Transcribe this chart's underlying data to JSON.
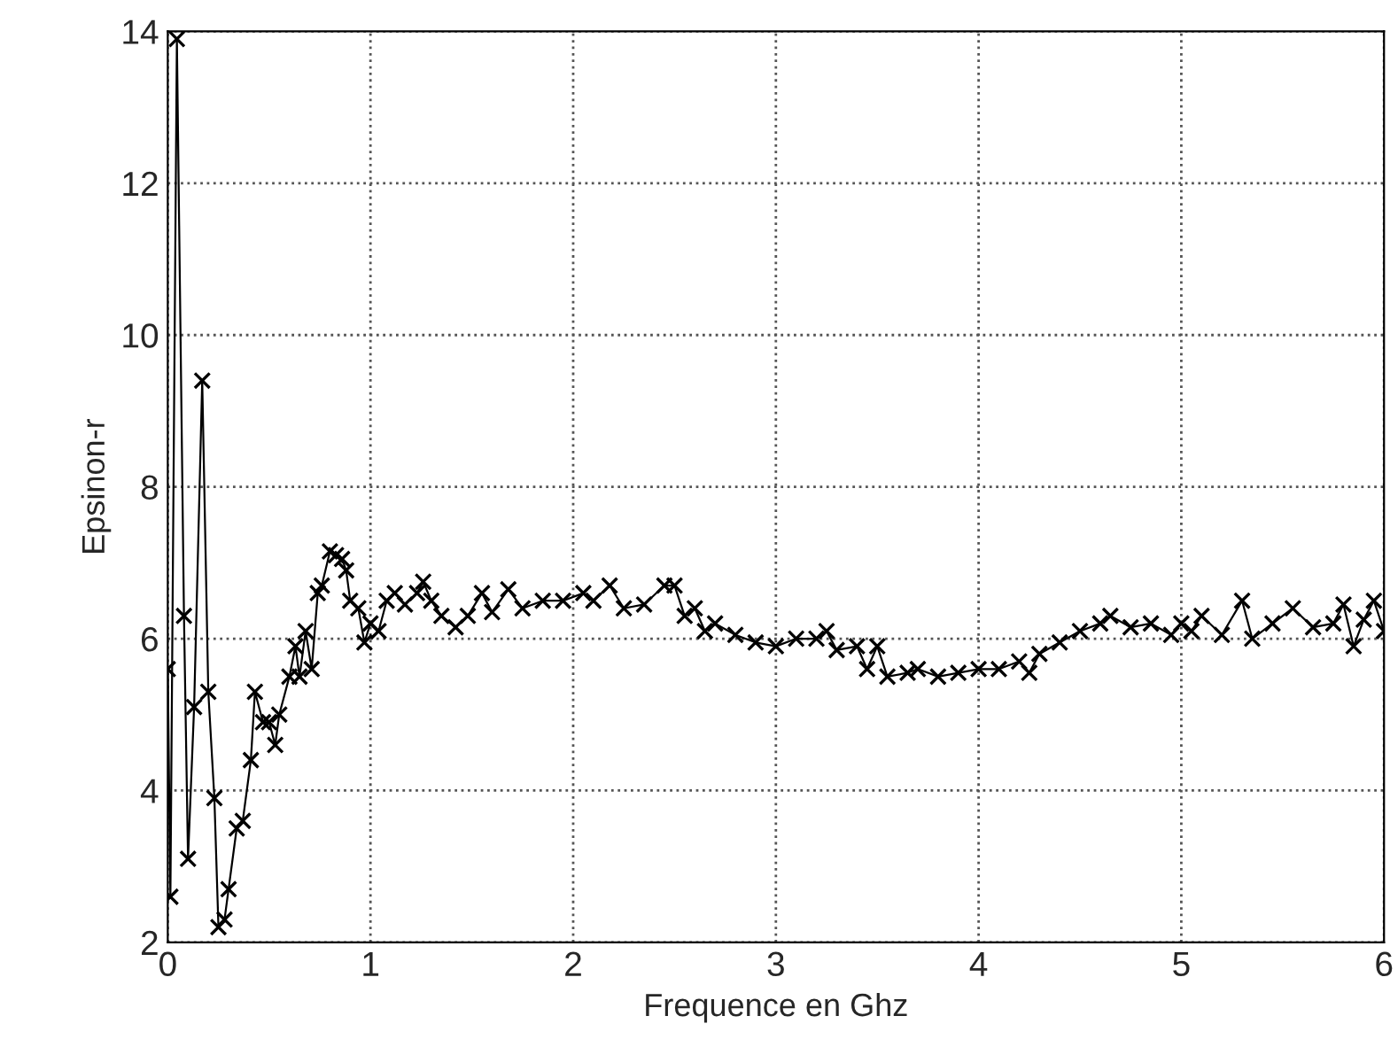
{
  "chart_data": {
    "type": "line",
    "xlabel": "Frequence en Ghz",
    "ylabel": "Epsinon-r",
    "xlim": [
      0,
      6
    ],
    "ylim": [
      2,
      14
    ],
    "xticks": [
      0,
      1,
      2,
      3,
      4,
      5,
      6
    ],
    "yticks": [
      2,
      4,
      6,
      8,
      10,
      12,
      14
    ],
    "grid": true,
    "marker": "cross",
    "line_style": "solid",
    "series": [
      {
        "color": "#000000",
        "x": [
          0,
          0.013,
          0.045,
          0.08,
          0.1,
          0.13,
          0.17,
          0.2,
          0.23,
          0.25,
          0.28,
          0.3,
          0.34,
          0.37,
          0.41,
          0.43,
          0.47,
          0.5,
          0.53,
          0.55,
          0.6,
          0.63,
          0.65,
          0.68,
          0.71,
          0.74,
          0.76,
          0.8,
          0.83,
          0.86,
          0.88,
          0.9,
          0.94,
          0.97,
          1.0,
          1.04,
          1.08,
          1.12,
          1.17,
          1.23,
          1.26,
          1.3,
          1.35,
          1.42,
          1.48,
          1.55,
          1.6,
          1.68,
          1.75,
          1.85,
          1.95,
          2.05,
          2.1,
          2.18,
          2.25,
          2.35,
          2.45,
          2.5,
          2.55,
          2.6,
          2.65,
          2.7,
          2.8,
          2.9,
          3.0,
          3.1,
          3.2,
          3.25,
          3.3,
          3.4,
          3.45,
          3.5,
          3.55,
          3.65,
          3.7,
          3.8,
          3.9,
          4.0,
          4.1,
          4.2,
          4.25,
          4.3,
          4.4,
          4.5,
          4.6,
          4.65,
          4.75,
          4.85,
          4.95,
          5.0,
          5.05,
          5.1,
          5.2,
          5.3,
          5.35,
          5.45,
          5.55,
          5.65,
          5.75,
          5.8,
          5.85,
          5.9,
          5.95,
          6.0
        ],
        "values": [
          5.6,
          2.6,
          13.9,
          6.3,
          3.1,
          5.1,
          9.4,
          5.3,
          3.9,
          2.2,
          2.3,
          2.7,
          3.5,
          3.6,
          4.4,
          5.3,
          4.9,
          4.9,
          4.6,
          5.0,
          5.5,
          5.9,
          5.5,
          6.1,
          5.6,
          6.6,
          6.7,
          7.15,
          7.1,
          7.05,
          6.9,
          6.5,
          6.4,
          5.95,
          6.2,
          6.1,
          6.5,
          6.6,
          6.45,
          6.6,
          6.75,
          6.5,
          6.3,
          6.15,
          6.3,
          6.6,
          6.35,
          6.65,
          6.4,
          6.5,
          6.5,
          6.6,
          6.5,
          6.7,
          6.4,
          6.45,
          6.7,
          6.7,
          6.3,
          6.4,
          6.1,
          6.2,
          6.05,
          5.95,
          5.9,
          6.0,
          6.0,
          6.1,
          5.85,
          5.9,
          5.6,
          5.9,
          5.5,
          5.55,
          5.6,
          5.5,
          5.55,
          5.6,
          5.6,
          5.7,
          5.55,
          5.8,
          5.95,
          6.1,
          6.2,
          6.3,
          6.15,
          6.2,
          6.05,
          6.2,
          6.1,
          6.3,
          6.05,
          6.5,
          6.0,
          6.2,
          6.4,
          6.15,
          6.2,
          6.45,
          5.9,
          6.25,
          6.5,
          6.1
        ]
      }
    ]
  }
}
